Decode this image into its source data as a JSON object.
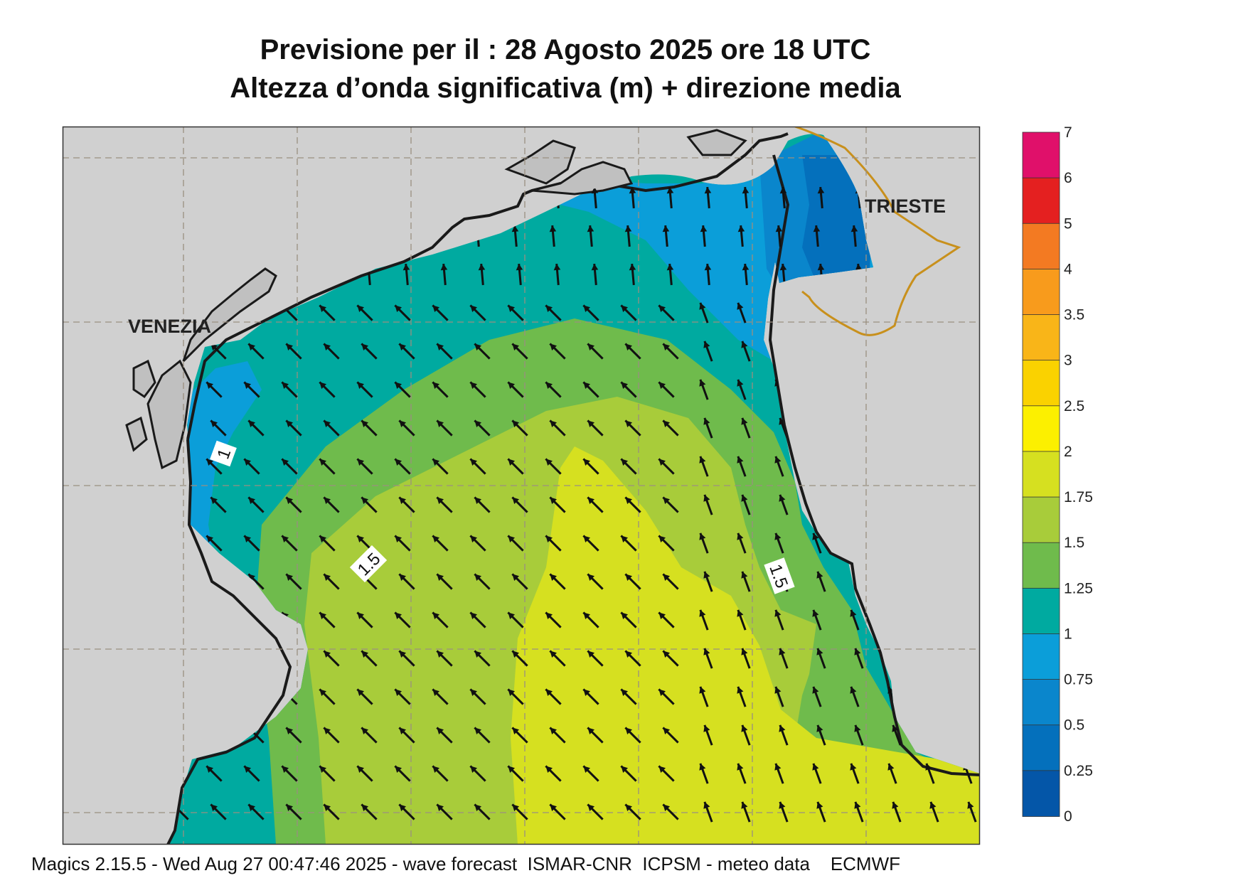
{
  "title": {
    "line1": "Previsione per il  :  28   Agosto  2025   ore 18 UTC",
    "line2": "Altezza d’onda significativa (m) + direzione media"
  },
  "places": {
    "venezia": "VENEZIA",
    "trieste": "TRIESTE"
  },
  "contour_labels": [
    "1",
    "1.5",
    "1.5"
  ],
  "legend": {
    "ticks": [
      "7",
      "6",
      "5",
      "4",
      "3.5",
      "3",
      "2.5",
      "2",
      "1.75",
      "1.5",
      "1.25",
      "1",
      "0.75",
      "0.5",
      "0.25",
      "0"
    ],
    "colors": [
      "#e0106a",
      "#e42020",
      "#f37a22",
      "#f89b1c",
      "#f9b518",
      "#fad200",
      "#fcf000",
      "#d6e020",
      "#a8cc3a",
      "#6fbb4c",
      "#00aaa0",
      "#0b9ed9",
      "#0a86cc",
      "#0470bc",
      "#0456a8"
    ]
  },
  "colors": {
    "land": "#d0d0d0",
    "sea_band_025": "#0456a8",
    "sea_band_05": "#0470bc",
    "sea_band_075": "#0a86cc",
    "sea_band_1": "#0b9ed9",
    "sea_band_125": "#00aaa0",
    "sea_band_15": "#6fbb4c",
    "sea_band_175": "#a8cc3a",
    "sea_band_2": "#d6e020",
    "border": "#c8901c"
  },
  "footer": "Magics 2.15.5 - Wed Aug 27 00:47:46 2025 - wave forecast  ISMAR-CNR  ICPSM - meteo data    ECMWF"
}
